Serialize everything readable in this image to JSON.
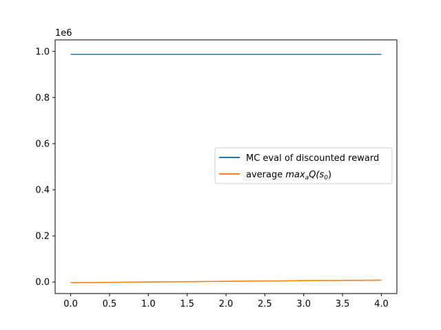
{
  "chart_data": {
    "type": "line",
    "title": "",
    "xlabel": "",
    "ylabel": "",
    "y_offset_label": "1e6",
    "xlim": [
      -0.2,
      4.2
    ],
    "ylim": [
      -0.05,
      1.05
    ],
    "x_ticks": [
      0.0,
      0.5,
      1.0,
      1.5,
      2.0,
      2.5,
      3.0,
      3.5,
      4.0
    ],
    "x_tick_labels": [
      "0.0",
      "0.5",
      "1.0",
      "1.5",
      "2.0",
      "2.5",
      "3.0",
      "3.5",
      "4.0"
    ],
    "y_ticks": [
      0.0,
      0.2,
      0.4,
      0.6,
      0.8,
      1.0
    ],
    "y_tick_labels": [
      "0.0",
      "0.2",
      "0.4",
      "0.6",
      "0.8",
      "1.0"
    ],
    "grid": false,
    "legend_position": "center-right",
    "x": [
      0,
      1,
      2,
      3,
      4
    ],
    "series": [
      {
        "name": "MC eval of discounted reward",
        "color": "#1f77b4",
        "values": [
          0.987,
          0.987,
          0.987,
          0.987,
          0.987
        ]
      },
      {
        "name_prefix": "average ",
        "name_math_main": "max",
        "name_math_sub": "a",
        "name_math_rest": "Q(s",
        "name_math_sub2": "0",
        "name_math_close": ")",
        "color": "#ff7f0e",
        "values": [
          -0.003,
          0.0,
          0.003,
          0.006,
          0.008
        ]
      }
    ]
  }
}
